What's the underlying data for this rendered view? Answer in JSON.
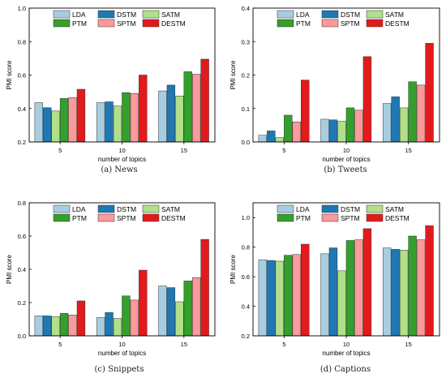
{
  "figure": {
    "series_meta": [
      {
        "name": "LDA",
        "color": "#a6cee3"
      },
      {
        "name": "DSTM",
        "color": "#1f78b4"
      },
      {
        "name": "SATM",
        "color": "#b2df8a"
      },
      {
        "name": "PTM",
        "color": "#33a02c"
      },
      {
        "name": "SPTM",
        "color": "#fb9a99"
      },
      {
        "name": "DESTM",
        "color": "#e31a1c"
      }
    ]
  },
  "chart_data": [
    {
      "type": "bar",
      "caption": "(a) News",
      "xlabel": "number of topics",
      "ylabel": "PMI score",
      "categories": [
        "5",
        "10",
        "15"
      ],
      "ylim": [
        0.2,
        1.0
      ],
      "yticks": [
        "0.2",
        "0.4",
        "0.6",
        "0.8",
        "1.0"
      ],
      "legend": "top-left",
      "grid": false,
      "series": [
        {
          "name": "LDA",
          "values": [
            0.435,
            0.435,
            0.505
          ]
        },
        {
          "name": "DSTM",
          "values": [
            0.405,
            0.44,
            0.54
          ]
        },
        {
          "name": "SATM",
          "values": [
            0.385,
            0.415,
            0.475
          ]
        },
        {
          "name": "PTM",
          "values": [
            0.46,
            0.495,
            0.62
          ]
        },
        {
          "name": "SPTM",
          "values": [
            0.465,
            0.49,
            0.605
          ]
        },
        {
          "name": "DESTM",
          "values": [
            0.515,
            0.6,
            0.695
          ]
        }
      ]
    },
    {
      "type": "bar",
      "caption": "(b) Tweets",
      "xlabel": "number of topics",
      "ylabel": "PMI score",
      "categories": [
        "5",
        "10",
        "15"
      ],
      "ylim": [
        0.0,
        0.4
      ],
      "yticks": [
        "0.0",
        "0.1",
        "0.2",
        "0.3",
        "0.4"
      ],
      "legend": "top-left",
      "grid": false,
      "series": [
        {
          "name": "LDA",
          "values": [
            0.02,
            0.068,
            0.115
          ]
        },
        {
          "name": "DSTM",
          "values": [
            0.033,
            0.066,
            0.135
          ]
        },
        {
          "name": "SATM",
          "values": [
            0.013,
            0.062,
            0.102
          ]
        },
        {
          "name": "PTM",
          "values": [
            0.08,
            0.102,
            0.18
          ]
        },
        {
          "name": "SPTM",
          "values": [
            0.06,
            0.095,
            0.17
          ]
        },
        {
          "name": "DESTM",
          "values": [
            0.185,
            0.255,
            0.295
          ]
        }
      ]
    },
    {
      "type": "bar",
      "caption": "(c) Snippets",
      "xlabel": "number of topics",
      "ylabel": "PMI score",
      "categories": [
        "5",
        "10",
        "15"
      ],
      "ylim": [
        0.0,
        0.8
      ],
      "yticks": [
        "0.0",
        "0.2",
        "0.4",
        "0.6",
        "0.8"
      ],
      "legend": "top-left",
      "grid": false,
      "series": [
        {
          "name": "LDA",
          "values": [
            0.12,
            0.11,
            0.3
          ]
        },
        {
          "name": "DSTM",
          "values": [
            0.12,
            0.14,
            0.29
          ]
        },
        {
          "name": "SATM",
          "values": [
            0.115,
            0.105,
            0.205
          ]
        },
        {
          "name": "PTM",
          "values": [
            0.135,
            0.24,
            0.33
          ]
        },
        {
          "name": "SPTM",
          "values": [
            0.125,
            0.215,
            0.35
          ]
        },
        {
          "name": "DESTM",
          "values": [
            0.21,
            0.395,
            0.58
          ]
        }
      ]
    },
    {
      "type": "bar",
      "caption": "(d) Captions",
      "xlabel": "number of topics",
      "ylabel": "PMI score",
      "categories": [
        "5",
        "10",
        "15"
      ],
      "ylim": [
        0.2,
        1.1
      ],
      "yticks": [
        "0.2",
        "0.4",
        "0.6",
        "0.8",
        "1.0"
      ],
      "legend": "top-left",
      "grid": false,
      "series": [
        {
          "name": "LDA",
          "values": [
            0.715,
            0.755,
            0.795
          ]
        },
        {
          "name": "DSTM",
          "values": [
            0.71,
            0.795,
            0.785
          ]
        },
        {
          "name": "SATM",
          "values": [
            0.705,
            0.64,
            0.78
          ]
        },
        {
          "name": "PTM",
          "values": [
            0.745,
            0.845,
            0.875
          ]
        },
        {
          "name": "SPTM",
          "values": [
            0.75,
            0.85,
            0.85
          ]
        },
        {
          "name": "DESTM",
          "values": [
            0.82,
            0.925,
            0.945
          ]
        }
      ]
    }
  ]
}
